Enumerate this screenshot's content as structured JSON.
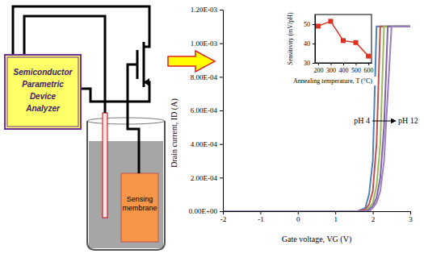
{
  "diagram": {
    "instrument": "Semiconductor Parametric Device Analyzer",
    "membrane": "Sensing membrane"
  },
  "chart_data": [
    {
      "type": "line",
      "x_label": "Gate voltage, VG (V)",
      "y_label": "Drain current, ID (A)",
      "x": [
        -2,
        1.6,
        1.8,
        1.9,
        2.0,
        2.1,
        2.2,
        2.3,
        2.4,
        2.5,
        3
      ],
      "series": [
        {
          "color": "#4f81bd",
          "values": [
            0,
            0,
            2e-05,
            0.0001,
            0.0003,
            0.0011,
            0.0011,
            0.0011,
            0.0011,
            0.0011,
            0.0011
          ]
        },
        {
          "color": "#c0504d",
          "values": [
            0,
            0,
            1e-05,
            4e-05,
            0.00012,
            0.0004,
            0.0011,
            0.0011,
            0.0011,
            0.0011,
            0.0011
          ]
        },
        {
          "color": "#9bbb59",
          "values": [
            0,
            0,
            0,
            2e-05,
            5e-05,
            0.00015,
            0.0004,
            0.0011,
            0.0011,
            0.0011,
            0.0011
          ]
        },
        {
          "color": "#8064a2",
          "values": [
            0,
            0,
            0,
            1e-05,
            3e-05,
            8e-05,
            0.0002,
            0.0005,
            0.0011,
            0.0011,
            0.0011
          ]
        },
        {
          "color": "#9a7fc2",
          "values": [
            0,
            0,
            0,
            0,
            2e-05,
            5e-05,
            0.00012,
            0.0003,
            0.0007,
            0.0011,
            0.0011
          ]
        }
      ],
      "xlim": [
        -2,
        3
      ],
      "xticks": [
        -2,
        -1,
        0,
        1,
        2,
        3
      ],
      "ylim": [
        0,
        0.0012
      ],
      "yticks": [
        {
          "value": 0,
          "label": "0.00E+00"
        },
        {
          "value": 0.0002,
          "label": "2.00E-04"
        },
        {
          "value": 0.0004,
          "label": "4.00E-04"
        },
        {
          "value": 0.0006,
          "label": "6.00E-04"
        },
        {
          "value": 0.0008,
          "label": "8.00E-04"
        },
        {
          "value": 0.001,
          "label": "1.00E-03"
        },
        {
          "value": 0.0012,
          "label": "1.20E-03"
        }
      ],
      "annotations": [
        "pH 4",
        "pH 12"
      ]
    },
    {
      "type": "line",
      "x_label": "Annealing temperature, T (°C)",
      "y_label": "Sensitivity (mV/pH)",
      "x": [
        200,
        300,
        400,
        500,
        600
      ],
      "series": [
        {
          "color": "#e0301e",
          "marker": "square",
          "values": [
            49,
            51.5,
            41.5,
            40.5,
            33.5
          ]
        }
      ],
      "xlim": [
        175,
        625
      ],
      "xticks": [
        200,
        300,
        400,
        500,
        600
      ],
      "ylim": [
        30,
        55
      ],
      "yticks": [
        30,
        40,
        50
      ]
    }
  ]
}
